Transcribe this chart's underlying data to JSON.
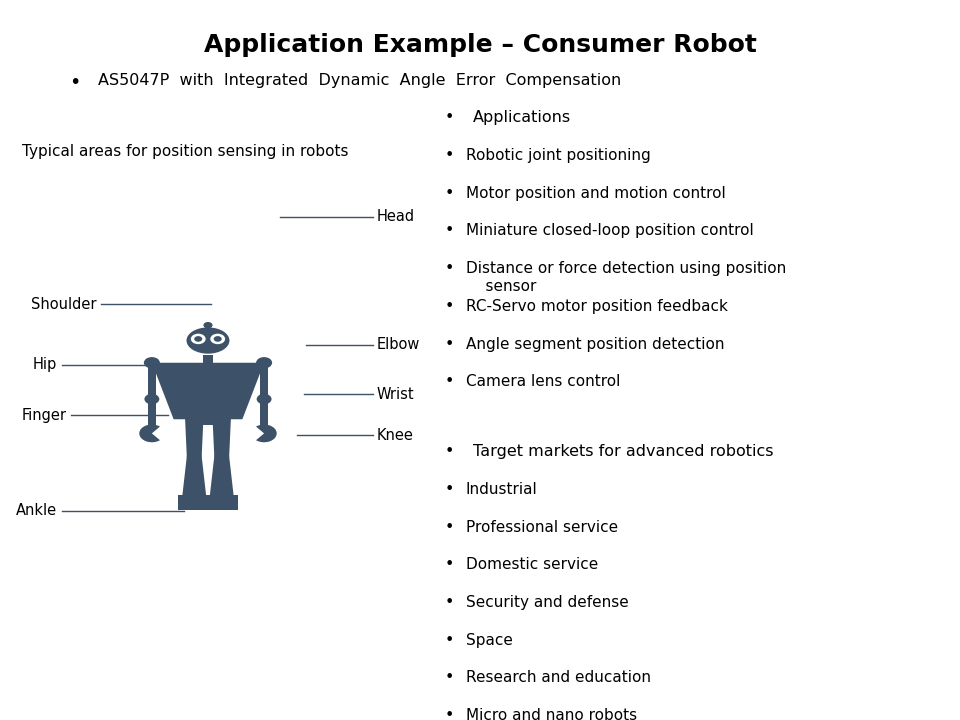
{
  "title": "Application Example – Consumer Robot",
  "subtitle": "AS5047P  with  Integrated  Dynamic  Angle  Error  Compensation",
  "left_label": "Typical areas for position sensing in robots",
  "robot_color": "#3d5168",
  "applications_header": "   Applications",
  "applications": [
    "Robotic joint positioning",
    "Motor position and motion control",
    "Miniature closed-loop position control",
    "Distance or force detection using position\n    sensor",
    "RC-Servo motor position feedback",
    "Angle segment position detection",
    "Camera lens control"
  ],
  "markets_header": "   Target markets for advanced robotics",
  "markets": [
    "Industrial",
    "Professional service",
    "Domestic service",
    "Security and defense",
    "Space",
    "Research and education",
    "Micro and nano robots"
  ],
  "bg_color": "#ffffff",
  "text_color": "#000000",
  "title_fontsize": 18,
  "body_fontsize": 11.5,
  "label_fontsize": 11
}
